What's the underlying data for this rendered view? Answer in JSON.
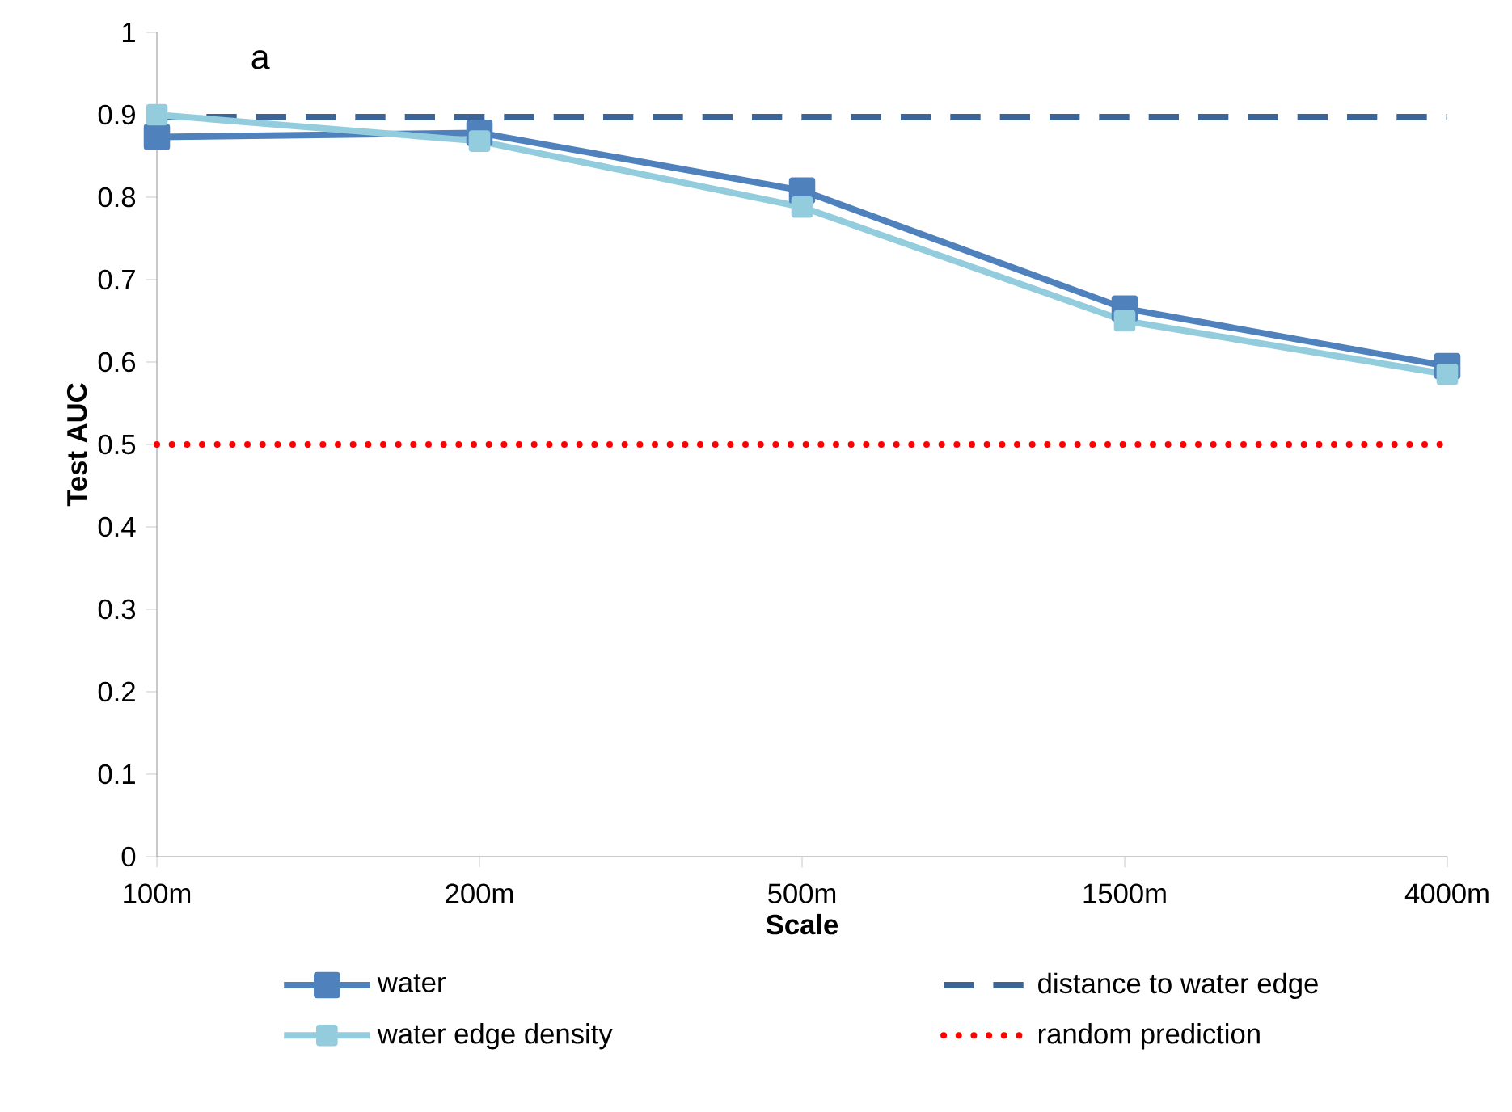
{
  "chart_data": {
    "type": "line",
    "xlabel": "Scale",
    "ylabel": "Test AUC",
    "annotations": [
      "a"
    ],
    "categories": [
      "100m",
      "200m",
      "500m",
      "1500m",
      "4000m"
    ],
    "series": [
      {
        "name": "water",
        "color": "#4f81bd",
        "values": [
          0.873,
          0.878,
          0.808,
          0.665,
          0.595
        ],
        "marker": "square",
        "line_style": "solid"
      },
      {
        "name": "distance to water edge",
        "color": "#3c6496",
        "values": [
          0.897,
          0.897,
          0.897,
          0.897,
          0.897
        ],
        "marker": "none",
        "line_style": "dashed"
      },
      {
        "name": "water edge density",
        "color": "#93cddd",
        "values": [
          0.9,
          0.868,
          0.788,
          0.65,
          0.585
        ],
        "marker": "square",
        "line_style": "solid"
      },
      {
        "name": "random prediction",
        "color": "#ff0000",
        "values": [
          0.5,
          0.5,
          0.5,
          0.5,
          0.5
        ],
        "marker": "none",
        "line_style": "dotted"
      }
    ],
    "ylim": [
      0,
      1
    ],
    "yticks": [
      0,
      0.1,
      0.2,
      0.3,
      0.4,
      0.5,
      0.6,
      0.7,
      0.8,
      0.9,
      1
    ],
    "grid": false,
    "legend": "bottom"
  }
}
